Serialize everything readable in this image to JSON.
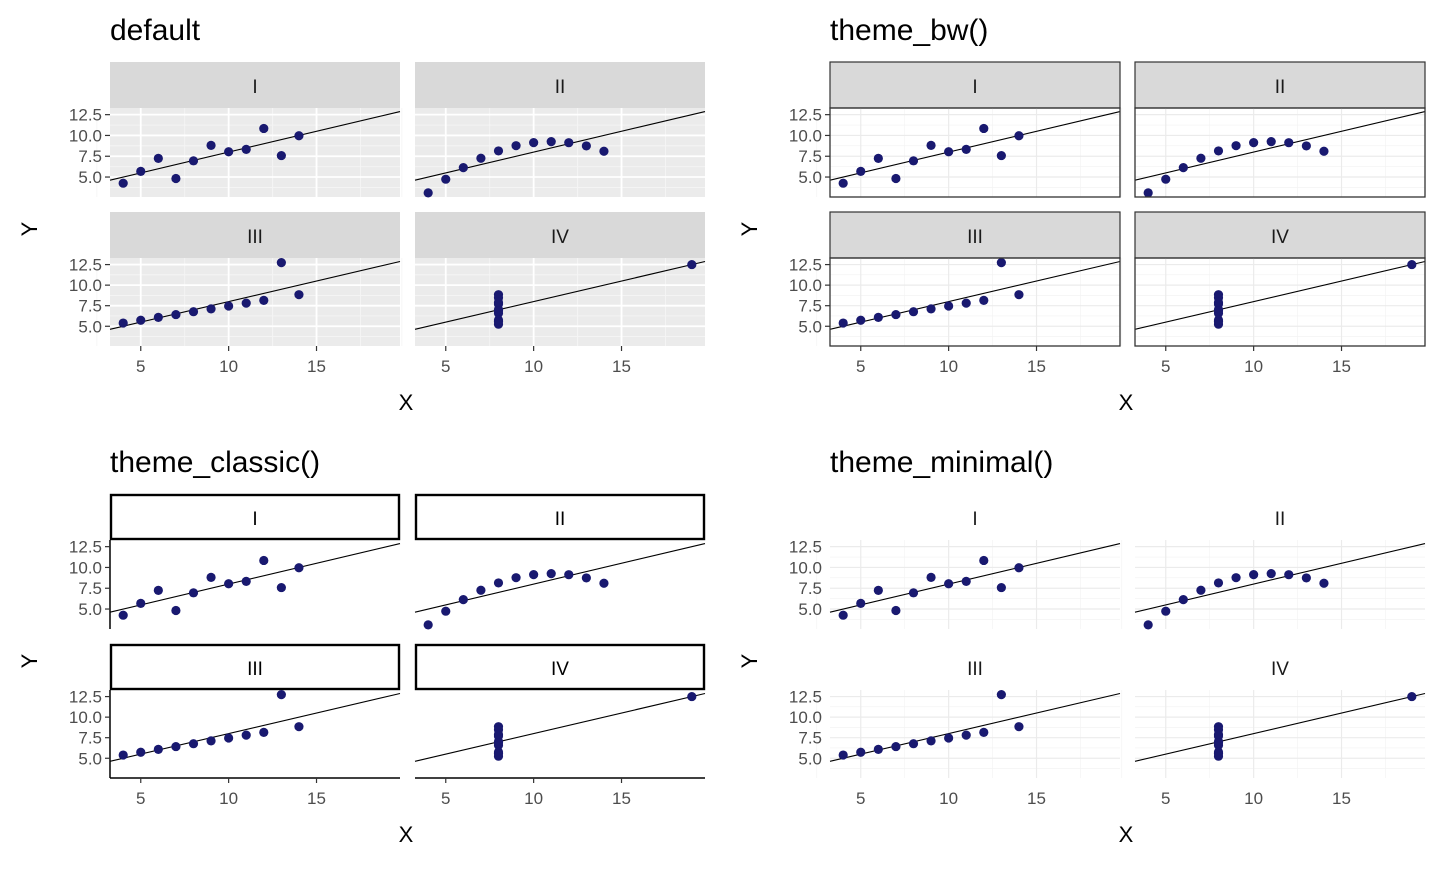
{
  "chart_data": [
    {
      "type": "scatter",
      "title": "default",
      "theme": "default",
      "xlabel": "X",
      "ylabel": "Y",
      "xlim": [
        3.25,
        19.75
      ],
      "ylim": [
        2.6,
        13.3
      ],
      "xticks": [
        "5",
        "10",
        "15"
      ],
      "yticks": [
        "5.0",
        "7.5",
        "10.0",
        "12.5"
      ],
      "grid": true,
      "point_color": "#191970",
      "panel_background": "#EBEBEB",
      "strip_background": "#D9D9D9",
      "fit_line": {
        "intercept": 3.0,
        "slope": 0.5
      },
      "panels": [
        {
          "label": "I",
          "points": [
            [
              10,
              8.04
            ],
            [
              8,
              6.95
            ],
            [
              13,
              7.58
            ],
            [
              9,
              8.81
            ],
            [
              11,
              8.33
            ],
            [
              14,
              9.96
            ],
            [
              6,
              7.24
            ],
            [
              4,
              4.26
            ],
            [
              12,
              10.84
            ],
            [
              7,
              4.82
            ],
            [
              5,
              5.68
            ]
          ]
        },
        {
          "label": "II",
          "points": [
            [
              10,
              9.14
            ],
            [
              8,
              8.14
            ],
            [
              13,
              8.74
            ],
            [
              9,
              8.77
            ],
            [
              11,
              9.26
            ],
            [
              14,
              8.1
            ],
            [
              6,
              6.13
            ],
            [
              4,
              3.1
            ],
            [
              12,
              9.13
            ],
            [
              7,
              7.26
            ],
            [
              5,
              4.74
            ]
          ]
        },
        {
          "label": "III",
          "points": [
            [
              10,
              7.46
            ],
            [
              8,
              6.77
            ],
            [
              13,
              12.74
            ],
            [
              9,
              7.11
            ],
            [
              11,
              7.81
            ],
            [
              14,
              8.84
            ],
            [
              6,
              6.08
            ],
            [
              4,
              5.39
            ],
            [
              12,
              8.15
            ],
            [
              7,
              6.42
            ],
            [
              5,
              5.73
            ]
          ]
        },
        {
          "label": "IV",
          "points": [
            [
              8,
              6.58
            ],
            [
              8,
              5.76
            ],
            [
              8,
              7.71
            ],
            [
              8,
              8.84
            ],
            [
              8,
              8.47
            ],
            [
              8,
              7.04
            ],
            [
              8,
              5.25
            ],
            [
              19,
              12.5
            ],
            [
              8,
              5.56
            ],
            [
              8,
              7.91
            ],
            [
              8,
              6.89
            ]
          ]
        }
      ]
    },
    {
      "type": "scatter",
      "title": "theme_bw()",
      "theme": "bw",
      "xlabel": "X",
      "ylabel": "Y",
      "xlim": [
        3.25,
        19.75
      ],
      "ylim": [
        2.6,
        13.3
      ],
      "xticks": [
        "5",
        "10",
        "15"
      ],
      "yticks": [
        "5.0",
        "7.5",
        "10.0",
        "12.5"
      ],
      "grid": true,
      "point_color": "#191970",
      "panel_background": "#FFFFFF",
      "strip_background": "#D9D9D9",
      "fit_line": {
        "intercept": 3.0,
        "slope": 0.5
      },
      "panels": [
        {
          "label": "I",
          "points": [
            [
              10,
              8.04
            ],
            [
              8,
              6.95
            ],
            [
              13,
              7.58
            ],
            [
              9,
              8.81
            ],
            [
              11,
              8.33
            ],
            [
              14,
              9.96
            ],
            [
              6,
              7.24
            ],
            [
              4,
              4.26
            ],
            [
              12,
              10.84
            ],
            [
              7,
              4.82
            ],
            [
              5,
              5.68
            ]
          ]
        },
        {
          "label": "II",
          "points": [
            [
              10,
              9.14
            ],
            [
              8,
              8.14
            ],
            [
              13,
              8.74
            ],
            [
              9,
              8.77
            ],
            [
              11,
              9.26
            ],
            [
              14,
              8.1
            ],
            [
              6,
              6.13
            ],
            [
              4,
              3.1
            ],
            [
              12,
              9.13
            ],
            [
              7,
              7.26
            ],
            [
              5,
              4.74
            ]
          ]
        },
        {
          "label": "III",
          "points": [
            [
              10,
              7.46
            ],
            [
              8,
              6.77
            ],
            [
              13,
              12.74
            ],
            [
              9,
              7.11
            ],
            [
              11,
              7.81
            ],
            [
              14,
              8.84
            ],
            [
              6,
              6.08
            ],
            [
              4,
              5.39
            ],
            [
              12,
              8.15
            ],
            [
              7,
              6.42
            ],
            [
              5,
              5.73
            ]
          ]
        },
        {
          "label": "IV",
          "points": [
            [
              8,
              6.58
            ],
            [
              8,
              5.76
            ],
            [
              8,
              7.71
            ],
            [
              8,
              8.84
            ],
            [
              8,
              8.47
            ],
            [
              8,
              7.04
            ],
            [
              8,
              5.25
            ],
            [
              19,
              12.5
            ],
            [
              8,
              5.56
            ],
            [
              8,
              7.91
            ],
            [
              8,
              6.89
            ]
          ]
        }
      ]
    },
    {
      "type": "scatter",
      "title": "theme_classic()",
      "theme": "classic",
      "xlabel": "X",
      "ylabel": "Y",
      "xlim": [
        3.25,
        19.75
      ],
      "ylim": [
        2.6,
        13.3
      ],
      "xticks": [
        "5",
        "10",
        "15"
      ],
      "yticks": [
        "5.0",
        "7.5",
        "10.0",
        "12.5"
      ],
      "grid": false,
      "point_color": "#191970",
      "panel_background": "#FFFFFF",
      "strip_background": "#FFFFFF",
      "fit_line": {
        "intercept": 3.0,
        "slope": 0.5
      },
      "panels": [
        {
          "label": "I",
          "points": [
            [
              10,
              8.04
            ],
            [
              8,
              6.95
            ],
            [
              13,
              7.58
            ],
            [
              9,
              8.81
            ],
            [
              11,
              8.33
            ],
            [
              14,
              9.96
            ],
            [
              6,
              7.24
            ],
            [
              4,
              4.26
            ],
            [
              12,
              10.84
            ],
            [
              7,
              4.82
            ],
            [
              5,
              5.68
            ]
          ]
        },
        {
          "label": "II",
          "points": [
            [
              10,
              9.14
            ],
            [
              8,
              8.14
            ],
            [
              13,
              8.74
            ],
            [
              9,
              8.77
            ],
            [
              11,
              9.26
            ],
            [
              14,
              8.1
            ],
            [
              6,
              6.13
            ],
            [
              4,
              3.1
            ],
            [
              12,
              9.13
            ],
            [
              7,
              7.26
            ],
            [
              5,
              4.74
            ]
          ]
        },
        {
          "label": "III",
          "points": [
            [
              10,
              7.46
            ],
            [
              8,
              6.77
            ],
            [
              13,
              12.74
            ],
            [
              9,
              7.11
            ],
            [
              11,
              7.81
            ],
            [
              14,
              8.84
            ],
            [
              6,
              6.08
            ],
            [
              4,
              5.39
            ],
            [
              12,
              8.15
            ],
            [
              7,
              6.42
            ],
            [
              5,
              5.73
            ]
          ]
        },
        {
          "label": "IV",
          "points": [
            [
              8,
              6.58
            ],
            [
              8,
              5.76
            ],
            [
              8,
              7.71
            ],
            [
              8,
              8.84
            ],
            [
              8,
              8.47
            ],
            [
              8,
              7.04
            ],
            [
              8,
              5.25
            ],
            [
              19,
              12.5
            ],
            [
              8,
              5.56
            ],
            [
              8,
              7.91
            ],
            [
              8,
              6.89
            ]
          ]
        }
      ]
    },
    {
      "type": "scatter",
      "title": "theme_minimal()",
      "theme": "minimal",
      "xlabel": "X",
      "ylabel": "Y",
      "xlim": [
        3.25,
        19.75
      ],
      "ylim": [
        2.6,
        13.3
      ],
      "xticks": [
        "5",
        "10",
        "15"
      ],
      "yticks": [
        "5.0",
        "7.5",
        "10.0",
        "12.5"
      ],
      "grid": true,
      "point_color": "#191970",
      "panel_background": "#FFFFFF",
      "strip_background": "none",
      "fit_line": {
        "intercept": 3.0,
        "slope": 0.5
      },
      "panels": [
        {
          "label": "I",
          "points": [
            [
              10,
              8.04
            ],
            [
              8,
              6.95
            ],
            [
              13,
              7.58
            ],
            [
              9,
              8.81
            ],
            [
              11,
              8.33
            ],
            [
              14,
              9.96
            ],
            [
              6,
              7.24
            ],
            [
              4,
              4.26
            ],
            [
              12,
              10.84
            ],
            [
              7,
              4.82
            ],
            [
              5,
              5.68
            ]
          ]
        },
        {
          "label": "II",
          "points": [
            [
              10,
              9.14
            ],
            [
              8,
              8.14
            ],
            [
              13,
              8.74
            ],
            [
              9,
              8.77
            ],
            [
              11,
              9.26
            ],
            [
              14,
              8.1
            ],
            [
              6,
              6.13
            ],
            [
              4,
              3.1
            ],
            [
              12,
              9.13
            ],
            [
              7,
              7.26
            ],
            [
              5,
              4.74
            ]
          ]
        },
        {
          "label": "III",
          "points": [
            [
              10,
              7.46
            ],
            [
              8,
              6.77
            ],
            [
              13,
              12.74
            ],
            [
              9,
              7.11
            ],
            [
              11,
              7.81
            ],
            [
              14,
              8.84
            ],
            [
              6,
              6.08
            ],
            [
              4,
              5.39
            ],
            [
              12,
              8.15
            ],
            [
              7,
              6.42
            ],
            [
              5,
              5.73
            ]
          ]
        },
        {
          "label": "IV",
          "points": [
            [
              8,
              6.58
            ],
            [
              8,
              5.76
            ],
            [
              8,
              7.71
            ],
            [
              8,
              8.84
            ],
            [
              8,
              8.47
            ],
            [
              8,
              7.04
            ],
            [
              8,
              5.25
            ],
            [
              19,
              12.5
            ],
            [
              8,
              5.56
            ],
            [
              8,
              7.91
            ],
            [
              8,
              6.89
            ]
          ]
        }
      ]
    }
  ]
}
